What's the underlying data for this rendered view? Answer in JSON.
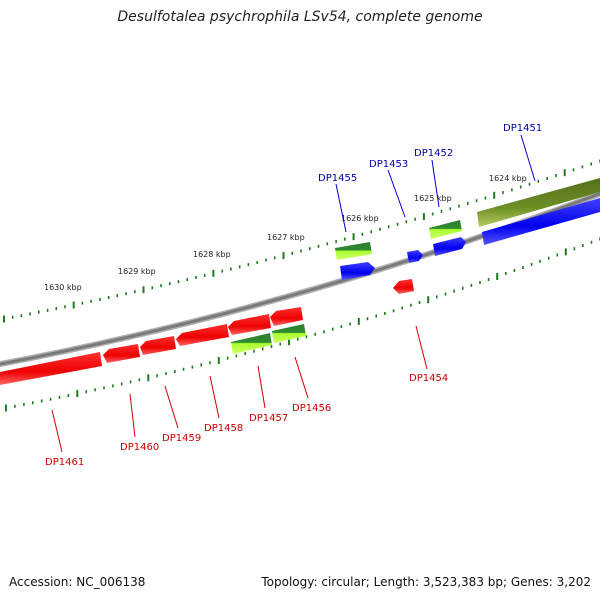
{
  "title": "Desulfotalea psychrophila LSv54, complete genome",
  "footer": {
    "accession": "Accession: NC_006138",
    "summary": "Topology: circular; Length: 3,523,383 bp; Genes: 3,202"
  },
  "colors": {
    "backbone": "#808080",
    "tick": "#1e7a1e",
    "forward_cds": "#0000ff",
    "reverse_cds": "#ff0000",
    "rna_gene": "#2e8b2e",
    "rna_light": "#adff2f",
    "pseudogene": "#6b8e23",
    "forward_label": "#0000aa",
    "reverse_label": "#cc0000"
  },
  "ruler": {
    "ticks": [
      "1624 kbp",
      "1625 kbp",
      "1626 kbp",
      "1627 kbp",
      "1628 kbp",
      "1629 kbp",
      "1630 kbp"
    ]
  },
  "genes": {
    "forward": [
      "DP1451",
      "DP1452",
      "DP1453",
      "DP1455"
    ],
    "reverse": [
      "DP1454",
      "DP1456",
      "DP1457",
      "DP1458",
      "DP1459",
      "DP1460",
      "DP1461"
    ]
  }
}
